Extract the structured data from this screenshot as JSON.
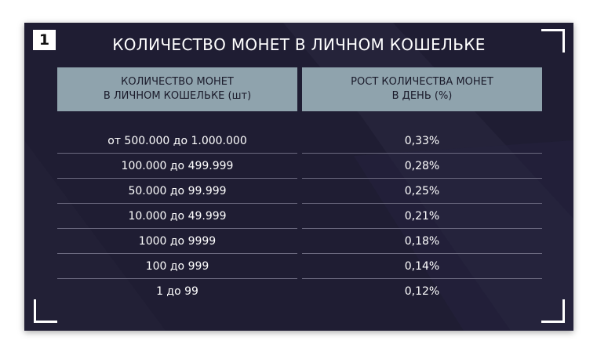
{
  "badge": {
    "number": "1"
  },
  "title": "КОЛИЧЕСТВО МОНЕТ В ЛИЧНОМ КОШЕЛЬКЕ",
  "table": {
    "headers": [
      "КОЛИЧЕСТВО МОНЕТ\nВ ЛИЧНОМ КОШЕЛЬКЕ (шт)",
      "РОСТ КОЛИЧЕСТВА МОНЕТ\nВ ДЕНЬ (%)"
    ],
    "rows": [
      {
        "amount": "от 500.000 до 1.000.000",
        "growth": "0,33%"
      },
      {
        "amount": "100.000 до 499.999",
        "growth": "0,28%"
      },
      {
        "amount": "50.000 до 99.999",
        "growth": "0,25%"
      },
      {
        "amount": "10.000 до 49.999",
        "growth": "0,21%"
      },
      {
        "amount": "1000 до 9999",
        "growth": "0,18%"
      },
      {
        "amount": "100 до 999",
        "growth": "0,14%"
      },
      {
        "amount": "1 до 99",
        "growth": "0,12%"
      }
    ]
  },
  "colors": {
    "background": "#1f1d33",
    "header": "#8fa3ad",
    "text": "#ffffff"
  }
}
